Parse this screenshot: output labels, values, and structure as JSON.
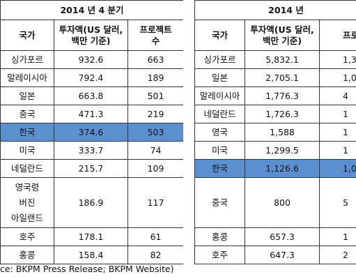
{
  "left": {
    "title": "2014 년 4 분기",
    "headers": [
      "국가",
      "투자액(US 달러,\n백만 기준)",
      "프로젝트\n수"
    ],
    "rows": [
      [
        "싱가포르",
        "932.6",
        "663"
      ],
      [
        "말레이시아",
        "792.4",
        "189"
      ],
      [
        "일본",
        "663.8",
        "501"
      ],
      [
        "중국",
        "471.3",
        "219"
      ],
      [
        "한국",
        "374.6",
        "503"
      ],
      [
        "미국",
        "333.7",
        "74"
      ],
      [
        "네덜란드",
        "215.7",
        "109"
      ],
      [
        "영국령\n버진\n아일랜드",
        "186.9",
        "117"
      ],
      [
        "호주",
        "178.1",
        "61"
      ],
      [
        "홍콩",
        "158.4",
        "82"
      ]
    ]
  },
  "right": {
    "title": "2014 년",
    "headers": [
      "국가",
      "투자액(US 달러,\n백만 기준)",
      "프로"
    ],
    "rows": [
      [
        "싱가포르",
        "5,832.1",
        "1,3"
      ],
      [
        "일본",
        "2,705.1",
        "1,0"
      ],
      [
        "말레이시아",
        "1,776.3",
        "4"
      ],
      [
        "네덜란드",
        "1,726.3",
        "1"
      ],
      [
        "영국",
        "1,588",
        "1"
      ],
      [
        "미국",
        "1,299.5",
        "1"
      ],
      [
        "한국",
        "1,126.6",
        "1,0"
      ],
      [
        "중국",
        "800",
        "5"
      ],
      [
        "홍콩",
        "657.3",
        "1"
      ],
      [
        "호주",
        "647.3",
        "2"
      ]
    ]
  },
  "source": "ce: BKPM Press Release; BKPM Website)"
}
